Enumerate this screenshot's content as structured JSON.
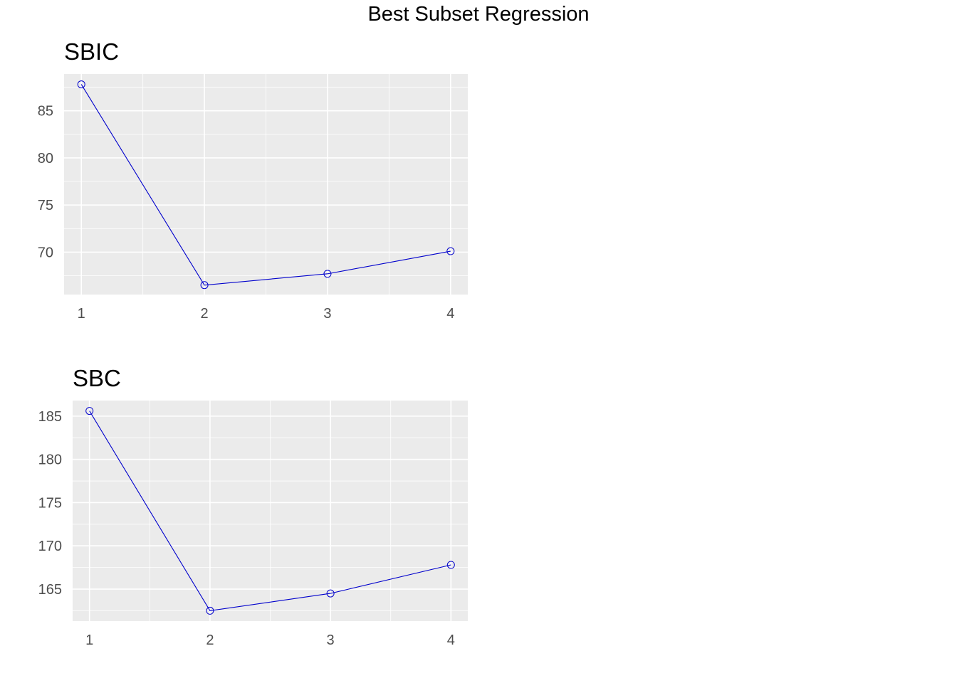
{
  "title": "Best Subset Regression",
  "colors": {
    "panel_bg": "#ebebeb",
    "grid": "#ffffff",
    "line": "#0000cc",
    "tick": "#4d4d4d"
  },
  "chart_data": [
    {
      "type": "line",
      "title": "SBIC",
      "x": [
        1,
        2,
        3,
        4
      ],
      "values": [
        87.8,
        66.5,
        67.7,
        70.1
      ],
      "xlim": [
        0.86,
        4.14
      ],
      "ylim": [
        65.5,
        88.9
      ],
      "xticks": [
        1,
        2,
        3,
        4
      ],
      "yticks": [
        70,
        75,
        80,
        85
      ],
      "grid": true,
      "marker": "open-circle"
    },
    {
      "type": "line",
      "title": "SBC",
      "x": [
        1,
        2,
        3,
        4
      ],
      "values": [
        185.6,
        162.5,
        164.5,
        167.8
      ],
      "xlim": [
        0.86,
        4.14
      ],
      "ylim": [
        161.3,
        186.8
      ],
      "xticks": [
        1,
        2,
        3,
        4
      ],
      "yticks": [
        165,
        170,
        175,
        180,
        185
      ],
      "grid": true,
      "marker": "open-circle"
    }
  ]
}
